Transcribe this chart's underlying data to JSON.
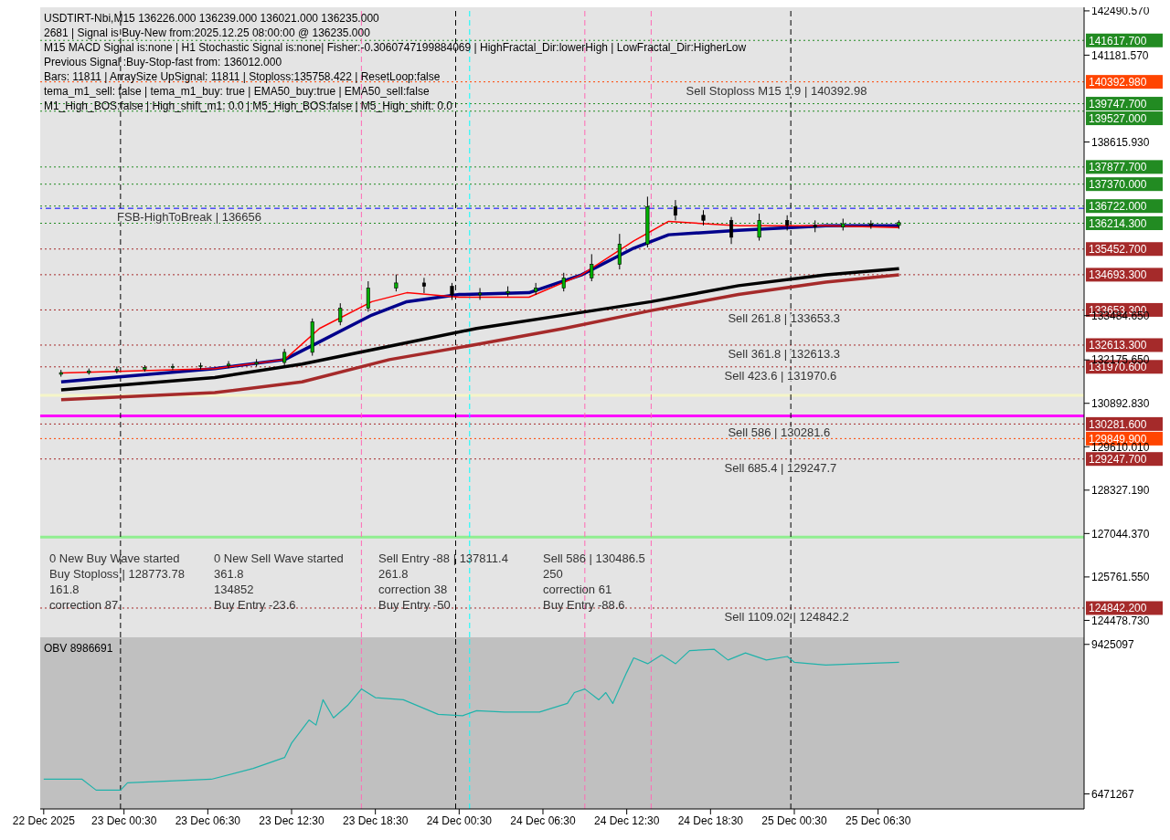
{
  "chart_data": [
    {
      "type": "candlestick",
      "title": "USDTIRT-Nbi,M15  136226.000 136239.000 136021.000 136235.000",
      "subtitle": "2681 | Signal is Buy-New from:2025.12.25 08:00:00 @ 136235.000",
      "tick_labels": "y",
      "xlim": [
        "2025-12-22T18:30",
        "2025-12-25T21:15"
      ],
      "ylim": [
        123978,
        142596
      ],
      "yticks": [
        {
          "value": 142490.57,
          "label": "142490.570"
        },
        {
          "value": 141181.57,
          "label": "141181.570"
        },
        {
          "value": 138615.93,
          "label": "138615.930"
        },
        {
          "value": 133484.65,
          "label": "133484.650"
        },
        {
          "value": 132175.65,
          "label": "132175.650"
        },
        {
          "value": 130892.83,
          "label": "130892.830"
        },
        {
          "value": 129610.01,
          "label": "129610.010"
        },
        {
          "value": 128327.19,
          "label": "128327.190"
        },
        {
          "value": 127044.37,
          "label": "127044.370"
        },
        {
          "value": 125761.55,
          "label": "125761.550"
        },
        {
          "value": 124478.73,
          "label": "124478.730"
        }
      ],
      "x": [
        "2025-12-22T20:00",
        "2025-12-22T22:00",
        "2025-12-23T00:00",
        "2025-12-23T02:00",
        "2025-12-23T04:00",
        "2025-12-23T06:00",
        "2025-12-23T08:00",
        "2025-12-23T10:00",
        "2025-12-23T12:00",
        "2025-12-23T14:00",
        "2025-12-23T16:00",
        "2025-12-23T18:00",
        "2025-12-23T20:00",
        "2025-12-23T22:00",
        "2025-12-24T00:00",
        "2025-12-24T02:00",
        "2025-12-24T04:00",
        "2025-12-24T06:00",
        "2025-12-24T08:00",
        "2025-12-24T10:00",
        "2025-12-24T12:00",
        "2025-12-24T14:00",
        "2025-12-24T16:00",
        "2025-12-24T18:00",
        "2025-12-24T20:00",
        "2025-12-24T22:00",
        "2025-12-25T00:00",
        "2025-12-25T02:00",
        "2025-12-25T04:00",
        "2025-12-25T06:00",
        "2025-12-25T08:00"
      ],
      "ohlc": [
        [
          131750,
          131880,
          131680,
          131800
        ],
        [
          131800,
          131920,
          131740,
          131850
        ],
        [
          131850,
          131980,
          131780,
          131900
        ],
        [
          131900,
          132020,
          131830,
          131950
        ],
        [
          131950,
          132060,
          131880,
          131980
        ],
        [
          131980,
          132090,
          131900,
          132000
        ],
        [
          132000,
          132140,
          131930,
          132050
        ],
        [
          132050,
          132200,
          131980,
          132100
        ],
        [
          132100,
          132500,
          132020,
          132400
        ],
        [
          132400,
          133400,
          132300,
          133300
        ],
        [
          133300,
          133850,
          133200,
          133700
        ],
        [
          133700,
          134500,
          133600,
          134300
        ],
        [
          134300,
          134700,
          134200,
          134450
        ],
        [
          134450,
          134600,
          134150,
          134350
        ],
        [
          134350,
          134450,
          133950,
          134100
        ],
        [
          134100,
          134300,
          133950,
          134150
        ],
        [
          134150,
          134350,
          134050,
          134200
        ],
        [
          134200,
          134450,
          134100,
          134300
        ],
        [
          134300,
          134750,
          134200,
          134600
        ],
        [
          134600,
          135300,
          134500,
          135000
        ],
        [
          135000,
          135900,
          134850,
          135600
        ],
        [
          135600,
          137000,
          135500,
          136700
        ],
        [
          136700,
          136900,
          136300,
          136450
        ],
        [
          136450,
          136600,
          136150,
          136300
        ],
        [
          136300,
          136400,
          135600,
          135800
        ],
        [
          135800,
          136500,
          135700,
          136300
        ],
        [
          136300,
          136450,
          136000,
          136150
        ],
        [
          136150,
          136300,
          135950,
          136100
        ],
        [
          136100,
          136350,
          136000,
          136200
        ],
        [
          136200,
          136300,
          136050,
          136150
        ],
        [
          136150,
          136300,
          136050,
          136235
        ]
      ],
      "series": [
        {
          "type": "line",
          "color": "#000000",
          "x": [
            "2025-12-22T20:00",
            "2025-12-23T07:00",
            "2025-12-23T13:15",
            "2025-12-23T19:30",
            "2025-12-24T01:45",
            "2025-12-24T08:00",
            "2025-12-24T14:15",
            "2025-12-24T20:30",
            "2025-12-25T02:45",
            "2025-12-25T08:00"
          ],
          "values": [
            131290,
            131657,
            132052,
            132579,
            133106,
            133500,
            133897,
            134370,
            134688,
            134872
          ]
        },
        {
          "type": "line",
          "color": "#a52a2a",
          "x": [
            "2025-12-22T20:00",
            "2025-12-23T07:00",
            "2025-12-23T13:15",
            "2025-12-23T19:30",
            "2025-12-24T01:45",
            "2025-12-24T08:00",
            "2025-12-24T14:15",
            "2025-12-24T20:30",
            "2025-12-25T02:45",
            "2025-12-25T08:00"
          ],
          "values": [
            130998,
            131209,
            131525,
            132184,
            132632,
            133106,
            133634,
            134108,
            134477,
            134688
          ]
        },
        {
          "type": "line",
          "color": "#00008b",
          "x": [
            "2025-12-22T20:00",
            "2025-12-23T07:00",
            "2025-12-23T12:00",
            "2025-12-23T14:30",
            "2025-12-23T18:15",
            "2025-12-23T20:45",
            "2025-12-24T00:30",
            "2025-12-24T05:30",
            "2025-12-24T09:15",
            "2025-12-24T13:00",
            "2025-12-24T15:30",
            "2025-12-24T20:30",
            "2025-12-25T02:45",
            "2025-12-25T08:00"
          ],
          "values": [
            131525,
            131920,
            132184,
            132711,
            133502,
            133897,
            134108,
            134161,
            134688,
            135479,
            135874,
            136006,
            136138,
            136138
          ]
        },
        {
          "type": "line",
          "color": "#ff0000",
          "x": [
            "2025-12-22T20:00",
            "2025-12-23T07:00",
            "2025-12-23T12:00",
            "2025-12-23T14:30",
            "2025-12-23T18:15",
            "2025-12-23T20:45",
            "2025-12-24T00:30",
            "2025-12-24T05:30",
            "2025-12-24T09:15",
            "2025-12-24T13:00",
            "2025-12-24T15:30",
            "2025-12-24T20:30",
            "2025-12-25T02:45",
            "2025-12-25T08:00"
          ],
          "values": [
            131788,
            131920,
            132184,
            133106,
            133897,
            134161,
            134030,
            134030,
            134688,
            135690,
            136270,
            136138,
            136138,
            136085
          ]
        }
      ],
      "ref_lines": [
        {
          "axis": "y",
          "value": 141617.7,
          "label": "141617.700",
          "color": "#228b22",
          "line_style": "dotted"
        },
        {
          "axis": "y",
          "value": 140392.98,
          "label": "140392.980",
          "color": "#ff4500",
          "line_style": "dotted"
        },
        {
          "axis": "y",
          "value": 139747.7,
          "label": "139747.700",
          "color": "#228b22",
          "line_style": "dotted"
        },
        {
          "axis": "y",
          "value": 139527.0,
          "label": "139527.000",
          "color": "#228b22",
          "line_style": "dotted"
        },
        {
          "axis": "y",
          "value": 137877.7,
          "label": "137877.700",
          "color": "#228b22",
          "line_style": "dotted"
        },
        {
          "axis": "y",
          "value": 137370.0,
          "label": "137370.000",
          "color": "#228b22",
          "line_style": "dotted"
        },
        {
          "axis": "y",
          "value": 136722.0,
          "label": "136722.000",
          "color": "#228b22",
          "line_style": "dotted"
        },
        {
          "axis": "y",
          "value": 136656,
          "color": "#0000ff",
          "line_style": "dashed"
        },
        {
          "axis": "y",
          "value": 136214.3,
          "label": "136214.300",
          "color": "#228b22",
          "line_style": "dotted"
        },
        {
          "axis": "y",
          "value": 135452.7,
          "label": "135452.700",
          "color": "#a52a2a",
          "line_style": "dotted"
        },
        {
          "axis": "y",
          "value": 134693.3,
          "label": "134693.300",
          "color": "#a52a2a",
          "line_style": "dotted"
        },
        {
          "axis": "y",
          "value": 133653.3,
          "label": "133653.300",
          "color": "#a52a2a",
          "line_style": "dotted"
        },
        {
          "axis": "y",
          "value": 132613.3,
          "label": "132613.300",
          "color": "#a52a2a",
          "line_style": "dotted"
        },
        {
          "axis": "y",
          "value": 131970.6,
          "label": "131970.600",
          "color": "#a52a2a",
          "line_style": "dotted"
        },
        {
          "axis": "y",
          "value": 131130,
          "color": "#f5f5c8",
          "line_style": "solid"
        },
        {
          "axis": "y",
          "value": 130523,
          "color": "#ff00ff",
          "line_style": "solid"
        },
        {
          "axis": "y",
          "value": 130281.6,
          "label": "130281.600",
          "color": "#a52a2a",
          "line_style": "dotted"
        },
        {
          "axis": "y",
          "value": 129849.9,
          "label": "129849.900",
          "color": "#ff4500",
          "line_style": "dotted"
        },
        {
          "axis": "y",
          "value": 129247.7,
          "label": "129247.700",
          "color": "#a52a2a",
          "line_style": "dotted"
        },
        {
          "axis": "y",
          "value": 126938,
          "color": "#90ee90",
          "line_style": "solid"
        },
        {
          "axis": "y",
          "value": 124842.2,
          "label": "124842.200",
          "color": "#a52a2a",
          "line_style": "dotted"
        },
        {
          "axis": "x",
          "value": "2025-12-23T00:15",
          "color": "#000000",
          "line_style": "dashed"
        },
        {
          "axis": "x",
          "value": "2025-12-23T17:30",
          "color": "#ff69b4",
          "line_style": "dashed"
        },
        {
          "axis": "x",
          "value": "2025-12-24T00:15",
          "color": "#000000",
          "line_style": "dashed"
        },
        {
          "axis": "x",
          "value": "2025-12-24T01:15",
          "color": "#00ffff",
          "line_style": "dashed"
        },
        {
          "axis": "x",
          "value": "2025-12-24T09:30",
          "color": "#ff69b4",
          "line_style": "dashed"
        },
        {
          "axis": "x",
          "value": "2025-12-24T14:15",
          "color": "#ff69b4",
          "line_style": "dashed"
        },
        {
          "axis": "x",
          "value": "2025-12-25T00:15",
          "color": "#000000",
          "line_style": "dashed"
        }
      ],
      "annotations": [
        "M15 MACD Signal is:none | H1 Stochastic Signal is:none| Fisher:-0.3060747199884069 | HighFractal_Dir:lowerHigh | LowFractal_Dir:HigherLow",
        "Previous Signal :Buy-Stop-fast from: 136012.000",
        "Bars: 11811 | ArraySize UpSignal: 11811 | Stoploss:135758.422 | ResetLoop:false",
        "tema_m1_sell: false | tema_m1_buy: true | EMA50_buy:true | EMA50_sell:false",
        "M1_High_BOS:false | High_shift_m1: 0.0 | M5_High_BOS:false | M5_High_shift: 0.0",
        {
          "text": "FSB-HighToBreak | 136656",
          "x": "2025-12-23T00:00",
          "y": 136656
        },
        {
          "text": "Sell Stoploss M15 1.9 | 140392.98",
          "x": "2025-12-24T16:45",
          "y": 140392.98
        },
        {
          "text": "Sell 261.8 | 133653.3",
          "x": "2025-12-24T19:45",
          "y": 133653.3
        },
        {
          "text": "Sell 361.8 | 132613.3",
          "x": "2025-12-24T19:45",
          "y": 132613.3
        },
        {
          "text": "Sell 423.6 | 131970.6",
          "x": "2025-12-24T19:30",
          "y": 131970.6
        },
        {
          "text": "Sell 586 | 130281.6",
          "x": "2025-12-24T19:45",
          "y": 130281.6
        },
        {
          "text": "Sell 685.4 | 129247.7",
          "x": "2025-12-24T19:30",
          "y": 129247.7
        },
        {
          "text": "Sell 1109.02 | 124842.2",
          "x": "2025-12-24T19:30",
          "y": 124842.2
        },
        "0 New Buy Wave started",
        "0 New Sell Wave started",
        "Sell Entry -88 | 137811.4",
        "Sell 586 | 130486.5",
        "Buy Stoploss | 128773.78",
        "361.8",
        "261.8",
        "250",
        "161.8",
        "134852",
        "correction 38",
        "correction 61",
        "correction 87",
        "Buy Entry -23.6",
        "Buy Entry -50",
        "Buy Entry -88.6"
      ]
    },
    {
      "type": "line",
      "title": "OBV 8986691",
      "xlim": [
        "2025-12-22T18:30",
        "2025-12-25T21:15"
      ],
      "xticks": [
        {
          "value": "2025-12-22T18:45",
          "label": "22 Dec 2025"
        },
        {
          "value": "2025-12-23T00:30",
          "label": "23 Dec 00:30"
        },
        {
          "value": "2025-12-23T06:30",
          "label": "23 Dec 06:30"
        },
        {
          "value": "2025-12-23T12:30",
          "label": "23 Dec 12:30"
        },
        {
          "value": "2025-12-23T18:30",
          "label": "23 Dec 18:30"
        },
        {
          "value": "2025-12-24T00:30",
          "label": "24 Dec 00:30"
        },
        {
          "value": "2025-12-24T06:30",
          "label": "24 Dec 06:30"
        },
        {
          "value": "2025-12-24T12:30",
          "label": "24 Dec 12:30"
        },
        {
          "value": "2025-12-24T18:30",
          "label": "24 Dec 18:30"
        },
        {
          "value": "2025-12-25T00:30",
          "label": "25 Dec 00:30"
        },
        {
          "value": "2025-12-25T06:30",
          "label": "25 Dec 06:30"
        }
      ],
      "ylim": [
        6174000,
        9565000
      ],
      "yticks": [
        9425097,
        6471267
      ],
      "x": [
        "2025-12-22T18:45",
        "2025-12-22T21:30",
        "2025-12-22T22:30",
        "2025-12-23T00:15",
        "2025-12-23T00:45",
        "2025-12-23T06:45",
        "2025-12-23T09:45",
        "2025-12-23T12:00",
        "2025-12-23T12:30",
        "2025-12-23T13:45",
        "2025-12-23T14:15",
        "2025-12-23T14:45",
        "2025-12-23T15:30",
        "2025-12-23T16:30",
        "2025-12-23T17:30",
        "2025-12-23T18:30",
        "2025-12-23T20:30",
        "2025-12-23T23:00",
        "2025-12-24T00:45",
        "2025-12-24T01:45",
        "2025-12-24T03:45",
        "2025-12-24T06:15",
        "2025-12-24T08:15",
        "2025-12-24T08:45",
        "2025-12-24T09:30",
        "2025-12-24T10:30",
        "2025-12-24T11:00",
        "2025-12-24T11:30",
        "2025-12-24T12:30",
        "2025-12-24T13:00",
        "2025-12-24T14:00",
        "2025-12-24T15:00",
        "2025-12-24T16:00",
        "2025-12-24T17:00",
        "2025-12-24T18:45",
        "2025-12-24T19:45",
        "2025-12-24T21:00",
        "2025-12-24T22:30",
        "2025-12-25T00:00",
        "2025-12-25T00:30",
        "2025-12-25T02:45",
        "2025-12-25T05:15",
        "2025-12-25T08:00"
      ],
      "series": [
        {
          "color": "#20b2aa",
          "values": [
            6761000,
            6761000,
            6546000,
            6546000,
            6690000,
            6761000,
            6975000,
            7190000,
            7475000,
            7931000,
            7831000,
            8331000,
            7974000,
            8216000,
            8544000,
            8373000,
            8331000,
            8044000,
            8016000,
            8116000,
            8088000,
            8088000,
            8259000,
            8473000,
            8544000,
            8331000,
            8473000,
            8259000,
            8873000,
            9158000,
            9044000,
            9216000,
            9044000,
            9301000,
            9329000,
            9116000,
            9257000,
            9116000,
            9186000,
            9072000,
            9016000,
            9044000,
            9072000
          ]
        }
      ],
      "ref_lines": [
        {
          "axis": "x",
          "value": "2025-12-23T00:15",
          "color": "#000000",
          "line_style": "dashed"
        },
        {
          "axis": "x",
          "value": "2025-12-23T17:30",
          "color": "#ff69b4",
          "line_style": "dashed"
        },
        {
          "axis": "x",
          "value": "2025-12-24T00:15",
          "color": "#000000",
          "line_style": "dashed"
        },
        {
          "axis": "x",
          "value": "2025-12-24T01:15",
          "color": "#00ffff",
          "line_style": "dashed"
        },
        {
          "axis": "x",
          "value": "2025-12-24T09:30",
          "color": "#ff69b4",
          "line_style": "dashed"
        },
        {
          "axis": "x",
          "value": "2025-12-24T14:15",
          "color": "#ff69b4",
          "line_style": "dashed"
        },
        {
          "axis": "x",
          "value": "2025-12-25T00:15",
          "color": "#000000",
          "line_style": "dashed"
        }
      ]
    }
  ]
}
